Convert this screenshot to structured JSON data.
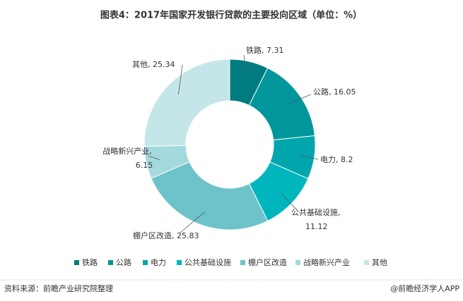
{
  "chart_data": {
    "type": "donut",
    "title": "图表4：2017年国家开发银行贷款的主要投向区域（单位：%）",
    "categories": [
      "铁路",
      "公路",
      "电力",
      "公共基础设施",
      "棚户区改造",
      "战略新兴产业",
      "其他"
    ],
    "values": [
      7.31,
      16.05,
      8.2,
      11.12,
      25.83,
      6.15,
      25.34
    ],
    "value_labels": [
      "铁路, 7.31",
      "公路, 16.05",
      "电力, 8.2",
      "公共基础设施,\n11.12",
      "棚户区改造, 25.83",
      "战略新兴产业,\n6.15",
      "其他, 25.34"
    ],
    "colors": [
      "#007c80",
      "#00969b",
      "#00a6ac",
      "#00b6bd",
      "#6dc3c9",
      "#a4d9dd",
      "#c5e6e9"
    ],
    "legend": "bottom"
  },
  "footer": {
    "source": "资料来源：前瞻产业研究院整理",
    "brand": "@前瞻经济学人APP"
  }
}
